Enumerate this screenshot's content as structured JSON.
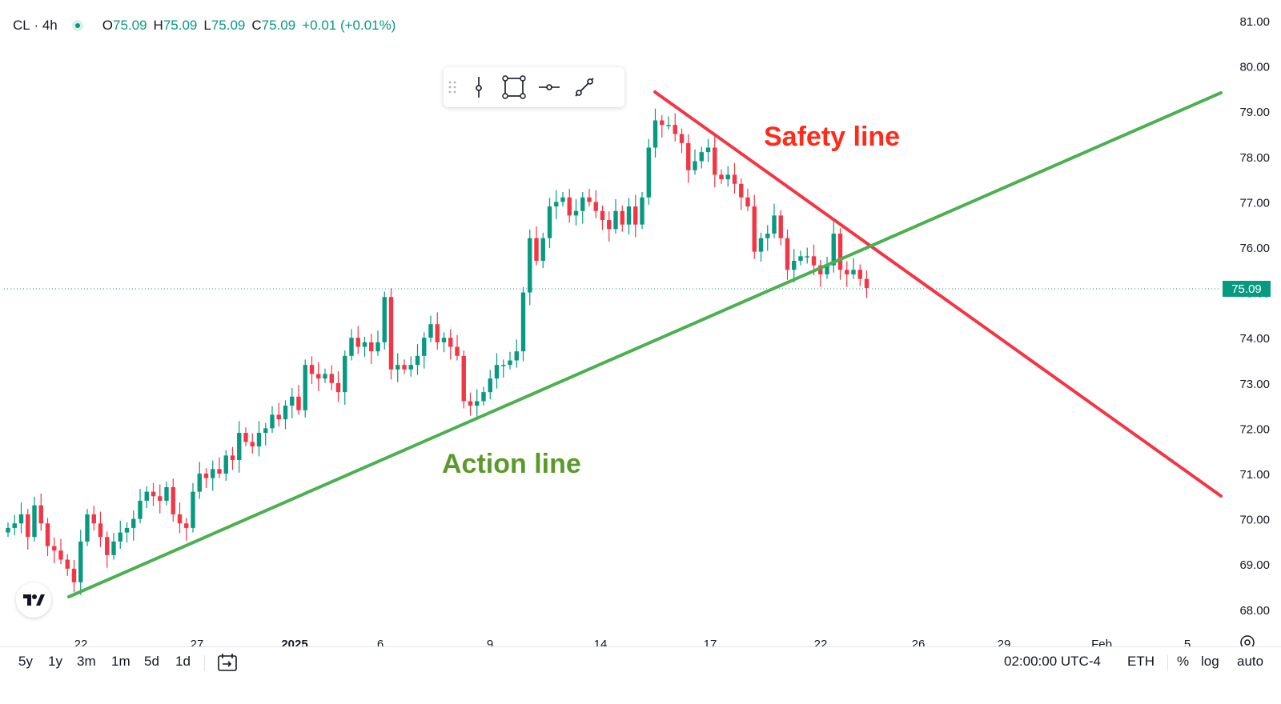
{
  "header": {
    "symbol": "CL",
    "interval": "4h",
    "open_label": "O",
    "open": "75.09",
    "high_label": "H",
    "high": "75.09",
    "low_label": "L",
    "low": "75.09",
    "close_label": "C",
    "close": "75.09",
    "change": "+0.01 (+0.01%)"
  },
  "toolbar": {
    "icons": [
      "drag-handle-icon",
      "vertical-line-icon",
      "rectangle-icon",
      "horizontal-ray-icon",
      "trend-line-icon"
    ]
  },
  "annotations": {
    "safety_label": "Safety line",
    "action_label": "Action line"
  },
  "last_price": "75.09",
  "bottom_bar": {
    "ranges": [
      "5y",
      "1y",
      "3m",
      "1m",
      "5d",
      "1d"
    ],
    "time": "02:00:00 UTC-4",
    "session": "ETH",
    "percent": "%",
    "log": "log",
    "auto": "auto"
  },
  "colors": {
    "up": "#089981",
    "down": "#f23645",
    "safety_line": "#f23645",
    "action_line": "#4caf50",
    "action_text": "#5a9a2a",
    "safety_text": "#ff2a1a"
  },
  "chart_data": {
    "type": "candlestick",
    "title": "CL · 4h",
    "y_axis": {
      "ticks": [
        "81.00",
        "80.00",
        "79.00",
        "78.00",
        "77.00",
        "76.00",
        "75.00",
        "74.00",
        "73.00",
        "72.00",
        "71.00",
        "70.00",
        "69.00",
        "68.00"
      ],
      "range": [
        67.5,
        81.2
      ],
      "position": "right"
    },
    "x_axis": {
      "ticks": [
        "22",
        "27",
        "2025",
        "6",
        "9",
        "14",
        "17",
        "22",
        "26",
        "29",
        "Feb",
        "5"
      ]
    },
    "close_series": [
      69.8,
      69.9,
      70.1,
      69.6,
      70.3,
      69.9,
      69.4,
      69.3,
      69.1,
      68.9,
      68.6,
      69.5,
      70.1,
      69.9,
      69.6,
      69.2,
      69.5,
      69.7,
      69.8,
      70.0,
      70.4,
      70.6,
      70.5,
      70.4,
      70.7,
      70.1,
      69.9,
      69.8,
      70.6,
      71.0,
      70.9,
      71.1,
      71.0,
      71.4,
      71.3,
      71.9,
      71.7,
      71.6,
      71.9,
      72.0,
      72.3,
      72.2,
      72.5,
      72.7,
      72.4,
      73.4,
      73.2,
      73.1,
      73.2,
      73.0,
      72.8,
      73.6,
      74.0,
      73.8,
      73.9,
      73.7,
      73.9,
      74.9,
      73.3,
      73.4,
      73.3,
      73.4,
      73.6,
      74.0,
      74.3,
      73.9,
      74.0,
      73.8,
      73.6,
      72.6,
      72.5,
      72.6,
      72.8,
      73.1,
      73.4,
      73.4,
      73.5,
      73.7,
      75.0,
      76.2,
      75.7,
      76.2,
      76.9,
      77.0,
      77.1,
      76.7,
      76.8,
      77.1,
      77.0,
      76.8,
      76.6,
      76.4,
      76.8,
      76.5,
      76.9,
      76.5,
      77.1,
      78.2,
      78.8,
      78.7,
      78.7,
      78.5,
      78.3,
      77.7,
      77.9,
      78.1,
      78.2,
      77.6,
      77.5,
      77.6,
      77.4,
      77.1,
      76.9,
      75.9,
      76.2,
      76.3,
      76.7,
      76.2,
      75.5,
      75.7,
      75.8,
      75.8,
      75.6,
      75.4,
      75.6,
      76.3,
      75.5,
      75.4,
      75.5,
      75.3,
      75.1
    ],
    "annotations": [
      {
        "label": "Safety line",
        "from": {
          "x": "15",
          "y": 79.4
        },
        "to": {
          "x": "Feb 6",
          "y": 70.5
        }
      },
      {
        "label": "Action line",
        "from": {
          "x": "21",
          "y": 68.3
        },
        "to": {
          "x": "Feb 6",
          "y": 79.4
        }
      }
    ],
    "last_price": 75.09,
    "grid": false
  }
}
